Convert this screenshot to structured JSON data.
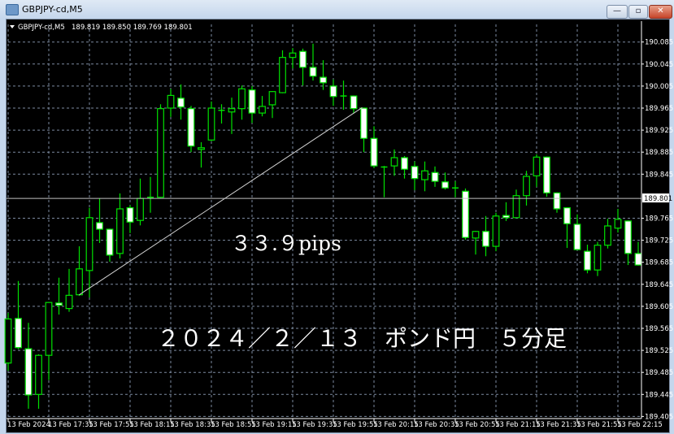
{
  "window": {
    "title": "GBPJPY-cd,M5",
    "buttons": {
      "minimize": "—",
      "maximize": "▫",
      "close": "✕"
    }
  },
  "chart_header": {
    "symbol": "GBPJPY-cd,M5",
    "ohlc_text": "189.819 189.850 189.769 189.801"
  },
  "annotations": {
    "pips_text": "３３.９pips",
    "caption_text": "２０２４／２／１３　ポンド円　５分足"
  },
  "colors": {
    "background": "#000000",
    "candle_outline": "#00e000",
    "bull_body": "#000000",
    "bear_body": "#ffffff",
    "grid": "#7c8aa0",
    "trend_line": "#d0d0d0",
    "bid_line": "#c0c0c0"
  },
  "chart_data": {
    "type": "candlestick",
    "title": "",
    "grid": true,
    "y_range": [
      189.405,
      190.085
    ],
    "y_ticks": [
      "190.085",
      "190.045",
      "190.005",
      "189.965",
      "189.925",
      "189.885",
      "189.845",
      "189.765",
      "189.725",
      "189.685",
      "189.645",
      "189.605",
      "189.565",
      "189.525",
      "189.485",
      "189.445",
      "189.405"
    ],
    "current_price": "189.801",
    "x_tick_labels": [
      "13 Feb 2024",
      "13 Feb 17:35",
      "13 Feb 17:55",
      "13 Feb 18:15",
      "13 Feb 18:35",
      "13 Feb 18:55",
      "13 Feb 19:15",
      "13 Feb 19:35",
      "13 Feb 19:55",
      "13 Feb 20:15",
      "13 Feb 20:35",
      "13 Feb 20:55",
      "13 Feb 21:15",
      "13 Feb 21:35",
      "13 Feb 21:55",
      "13 Feb 22:15"
    ],
    "x": [
      "17:15",
      "17:20",
      "17:25",
      "17:30",
      "17:35",
      "17:40",
      "17:45",
      "17:50",
      "17:55",
      "18:00",
      "18:05",
      "18:10",
      "18:15",
      "18:20",
      "18:25",
      "18:30",
      "18:35",
      "18:40",
      "18:45",
      "18:50",
      "18:55",
      "19:00",
      "19:05",
      "19:10",
      "19:15",
      "19:20",
      "19:25",
      "19:30",
      "19:35",
      "19:40",
      "19:45",
      "19:50",
      "19:55",
      "20:00",
      "20:05",
      "20:10",
      "20:15",
      "20:20",
      "20:25",
      "20:30",
      "20:35",
      "20:40",
      "20:45",
      "20:50",
      "20:55",
      "21:00",
      "21:05",
      "21:10",
      "21:15",
      "21:20",
      "21:25",
      "21:30",
      "21:35",
      "21:40",
      "21:45",
      "21:50",
      "21:55",
      "22:00",
      "22:05",
      "22:10",
      "22:15",
      "22:20",
      "22:25"
    ],
    "ohlc": [
      [
        189.502,
        189.593,
        189.488,
        189.582
      ],
      [
        189.583,
        189.651,
        189.527,
        189.53
      ],
      [
        189.528,
        189.575,
        189.419,
        189.444
      ],
      [
        189.445,
        189.518,
        189.419,
        189.516
      ],
      [
        189.516,
        189.613,
        189.471,
        189.612
      ],
      [
        189.611,
        189.657,
        189.59,
        189.607
      ],
      [
        189.601,
        189.673,
        189.595,
        189.625
      ],
      [
        189.626,
        189.714,
        189.624,
        189.673
      ],
      [
        189.67,
        189.784,
        189.621,
        189.766
      ],
      [
        189.757,
        189.801,
        189.72,
        189.745
      ],
      [
        189.745,
        189.746,
        189.686,
        189.698
      ],
      [
        189.701,
        189.81,
        189.692,
        189.782
      ],
      [
        189.784,
        189.789,
        189.738,
        189.758
      ],
      [
        189.761,
        189.837,
        189.752,
        189.801
      ],
      [
        189.803,
        189.84,
        189.775,
        189.803
      ],
      [
        189.803,
        189.972,
        189.802,
        189.964
      ],
      [
        189.965,
        190.0,
        189.949,
        189.988
      ],
      [
        189.983,
        190.008,
        189.944,
        189.967
      ],
      [
        189.964,
        189.969,
        189.885,
        189.896
      ],
      [
        189.89,
        189.903,
        189.857,
        189.893
      ],
      [
        189.907,
        189.977,
        189.905,
        189.965
      ],
      [
        189.961,
        189.972,
        189.937,
        189.961
      ],
      [
        189.958,
        189.984,
        189.918,
        189.964
      ],
      [
        189.964,
        190.006,
        189.944,
        190.0
      ],
      [
        189.998,
        190.005,
        189.938,
        189.956
      ],
      [
        189.956,
        189.987,
        189.95,
        189.968
      ],
      [
        189.971,
        189.996,
        189.947,
        189.995
      ],
      [
        189.993,
        190.07,
        189.992,
        190.057
      ],
      [
        190.057,
        190.074,
        190.037,
        190.065
      ],
      [
        190.068,
        190.073,
        190.006,
        190.039
      ],
      [
        190.039,
        190.082,
        190.015,
        190.023
      ],
      [
        190.021,
        190.052,
        189.998,
        190.011
      ],
      [
        190.005,
        190.017,
        189.969,
        189.986
      ],
      [
        189.987,
        190.015,
        189.962,
        189.987
      ],
      [
        189.987,
        189.988,
        189.955,
        189.964
      ],
      [
        189.965,
        189.966,
        189.885,
        189.91
      ],
      [
        189.91,
        189.932,
        189.856,
        189.86
      ],
      [
        189.858,
        189.86,
        189.803,
        189.858
      ],
      [
        189.86,
        189.89,
        189.842,
        189.875
      ],
      [
        189.875,
        189.878,
        189.837,
        189.854
      ],
      [
        189.859,
        189.868,
        189.816,
        189.837
      ],
      [
        189.835,
        189.868,
        189.814,
        189.851
      ],
      [
        189.848,
        189.859,
        189.822,
        189.832
      ],
      [
        189.831,
        189.848,
        189.817,
        189.82
      ],
      [
        189.82,
        189.832,
        189.803,
        189.82
      ],
      [
        189.814,
        189.819,
        189.726,
        189.73
      ],
      [
        189.729,
        189.742,
        189.699,
        189.741
      ],
      [
        189.741,
        189.769,
        189.696,
        189.714
      ],
      [
        189.714,
        189.775,
        189.705,
        189.769
      ],
      [
        189.77,
        189.794,
        189.76,
        189.766
      ],
      [
        189.766,
        189.817,
        189.765,
        189.806
      ],
      [
        189.806,
        189.851,
        189.788,
        189.841
      ],
      [
        189.842,
        189.881,
        189.822,
        189.876
      ],
      [
        189.876,
        189.877,
        189.804,
        189.811
      ],
      [
        189.811,
        189.812,
        189.775,
        189.782
      ],
      [
        189.784,
        189.785,
        189.711,
        189.755
      ],
      [
        189.754,
        189.772,
        189.707,
        189.708
      ],
      [
        189.705,
        189.717,
        189.665,
        189.671
      ],
      [
        189.671,
        189.722,
        189.66,
        189.716
      ],
      [
        189.716,
        189.764,
        189.71,
        189.751
      ],
      [
        189.747,
        189.782,
        189.739,
        189.763
      ],
      [
        189.76,
        189.761,
        189.68,
        189.701
      ],
      [
        189.701,
        189.722,
        189.679,
        189.68
      ]
    ],
    "trend_line": {
      "from": {
        "time": "17:50",
        "price": 189.626
      },
      "to": {
        "time": "20:10",
        "price": 189.966
      }
    }
  }
}
